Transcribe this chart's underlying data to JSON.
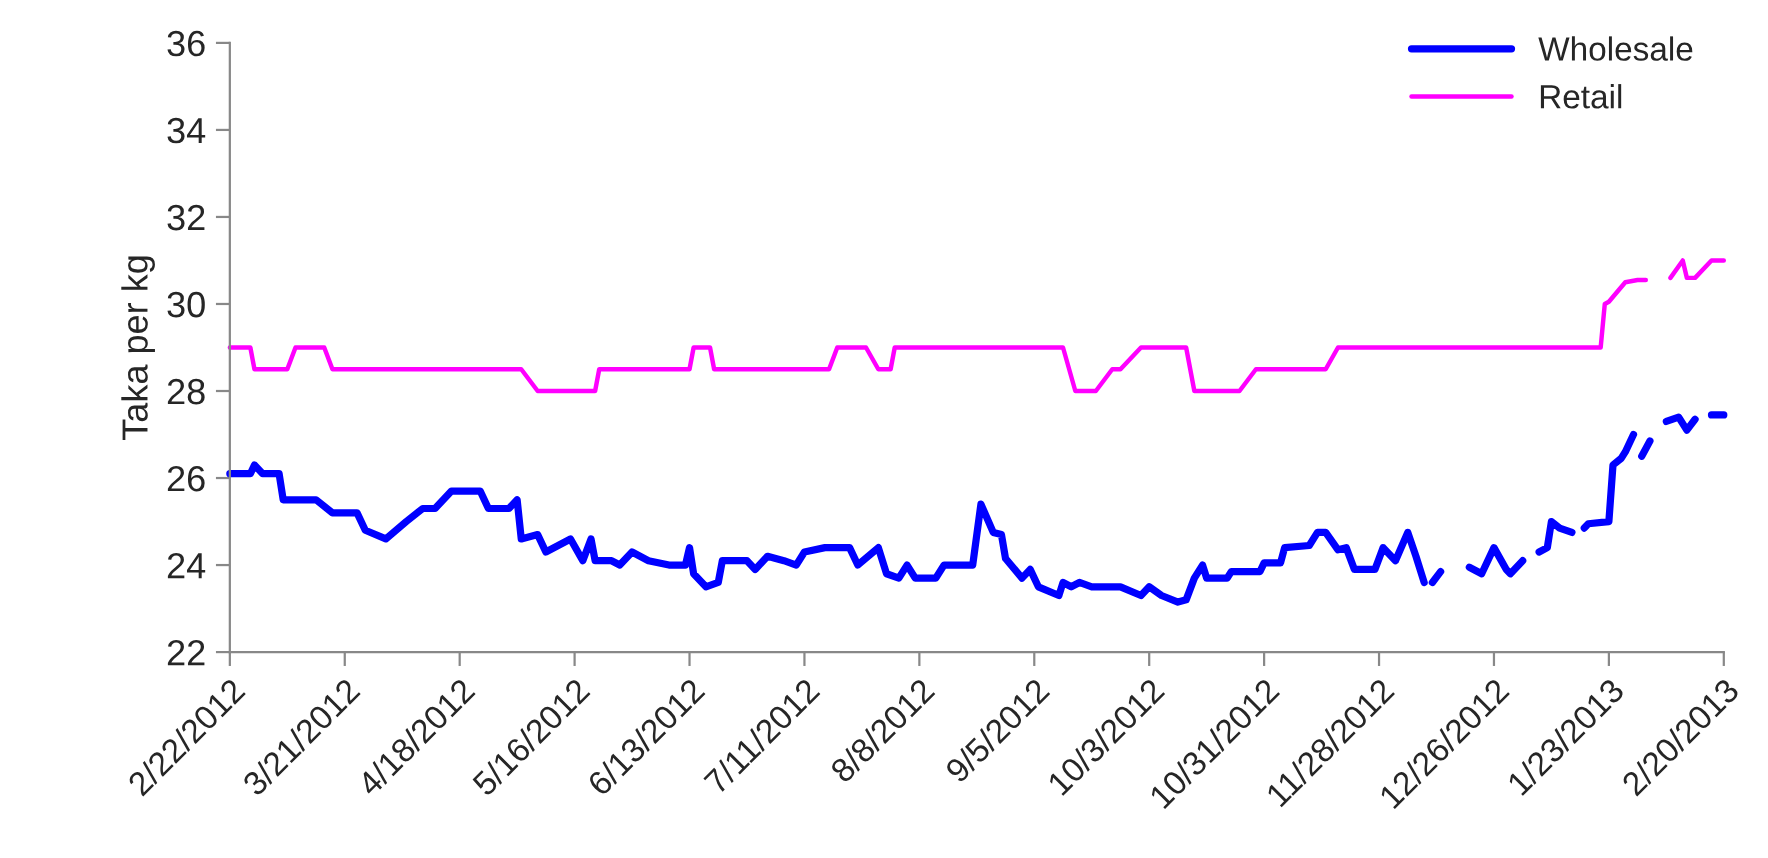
{
  "chart_data": {
    "type": "line",
    "ylabel": "Taka per kg",
    "ylim": [
      22,
      36
    ],
    "yticks": [
      22,
      24,
      26,
      28,
      30,
      32,
      34,
      36
    ],
    "xlim": [
      "2012-02-22",
      "2013-02-20"
    ],
    "xticks": [
      {
        "value": "2012-02-22",
        "label": "2/22/2012"
      },
      {
        "value": "2012-03-21",
        "label": "3/21/2012"
      },
      {
        "value": "2012-04-18",
        "label": "4/18/2012"
      },
      {
        "value": "2012-05-16",
        "label": "5/16/2012"
      },
      {
        "value": "2012-06-13",
        "label": "6/13/2012"
      },
      {
        "value": "2012-07-11",
        "label": "7/11/2012"
      },
      {
        "value": "2012-08-08",
        "label": "8/8/2012"
      },
      {
        "value": "2012-09-05",
        "label": "9/5/2012"
      },
      {
        "value": "2012-10-03",
        "label": "10/3/2012"
      },
      {
        "value": "2012-10-31",
        "label": "10/31/2012"
      },
      {
        "value": "2012-11-28",
        "label": "11/28/2012"
      },
      {
        "value": "2012-12-26",
        "label": "12/26/2012"
      },
      {
        "value": "2013-01-23",
        "label": "1/23/2013"
      },
      {
        "value": "2013-02-20",
        "label": "2/20/2013"
      }
    ],
    "grid": false,
    "legend": "top right",
    "marker": "none",
    "line_style": "solid",
    "series": [
      {
        "name": "Wholesale",
        "color": "#0000ff",
        "x": [
          "2012-02-22",
          "2012-02-27",
          "2012-02-28",
          "2012-03-01",
          "2012-03-05",
          "2012-03-06",
          "2012-03-14",
          "2012-03-18",
          "2012-03-24",
          "2012-03-26",
          "2012-03-31",
          "2012-04-05",
          "2012-04-09",
          "2012-04-12",
          "2012-04-16",
          "2012-04-23",
          "2012-04-25",
          "2012-04-30",
          "2012-05-02",
          "2012-05-03",
          "2012-05-07",
          "2012-05-09",
          "2012-05-15",
          "2012-05-18",
          "2012-05-20",
          "2012-05-21",
          "2012-05-25",
          "2012-05-27",
          "2012-05-30",
          "2012-06-03",
          "2012-06-08",
          "2012-06-12",
          "2012-06-13",
          "2012-06-14",
          "2012-06-17",
          "2012-06-20",
          "2012-06-21",
          "2012-06-27",
          "2012-06-29",
          "2012-07-02",
          "2012-07-06",
          "2012-07-09",
          "2012-07-11",
          "2012-07-16",
          "2012-07-22",
          "2012-07-24",
          "2012-07-29",
          "2012-07-31",
          "2012-08-03",
          "2012-08-05",
          "2012-08-07",
          "2012-08-12",
          "2012-08-14",
          "2012-08-21",
          "2012-08-23",
          "2012-08-26",
          "2012-08-28",
          "2012-08-29",
          "2012-09-02",
          "2012-09-04",
          "2012-09-06",
          "2012-09-11",
          "2012-09-12",
          "2012-09-14",
          "2012-09-16",
          "2012-09-19",
          "2012-09-26",
          "2012-10-01",
          "2012-10-03",
          "2012-10-06",
          "2012-10-10",
          "2012-10-12",
          "2012-10-14",
          "2012-10-16",
          "2012-10-17",
          "2012-10-22",
          "2012-10-23",
          "2012-10-30",
          "2012-10-31",
          "2012-11-04",
          "2012-11-05",
          "2012-11-11",
          "2012-11-13",
          "2012-11-15",
          "2012-11-18",
          "2012-11-20",
          "2012-11-22",
          "2012-11-27",
          "2012-11-29",
          "2012-12-02",
          "2012-12-05",
          "2012-12-07",
          "2012-12-09",
          "2012-12-10",
          "2012-12-11",
          "2012-12-13",
          "2012-12-17",
          "2012-12-20",
          "2012-12-23",
          "2012-12-26",
          "2012-12-29",
          "2012-12-30",
          "2013-01-02",
          "2013-01-04",
          "2013-01-06",
          "2013-01-08",
          "2013-01-09",
          "2013-01-11",
          "2013-01-14",
          "2013-01-15",
          "2013-01-17",
          "2013-01-18",
          "2013-01-23",
          "2013-01-24",
          "2013-01-26",
          "2013-01-27",
          "2013-01-29",
          "2013-01-30",
          "2013-01-31",
          "2013-02-02",
          "2013-02-04",
          "2013-02-06",
          "2013-02-09",
          "2013-02-11",
          "2013-02-13",
          "2013-02-15",
          "2013-02-17",
          "2013-02-20"
        ],
        "values": [
          26.1,
          26.1,
          26.3,
          26.1,
          26.1,
          25.5,
          25.5,
          25.2,
          25.2,
          24.8,
          24.6,
          25.0,
          25.3,
          25.3,
          25.7,
          25.7,
          25.3,
          25.3,
          25.5,
          24.6,
          24.7,
          24.3,
          24.6,
          24.1,
          24.6,
          24.1,
          24.1,
          24.0,
          24.3,
          24.1,
          24.0,
          24.0,
          24.4,
          23.8,
          23.5,
          23.6,
          24.1,
          24.1,
          23.9,
          24.2,
          24.1,
          24.0,
          24.3,
          24.4,
          24.4,
          24.0,
          24.4,
          23.8,
          23.7,
          24.0,
          23.7,
          23.7,
          24.0,
          24.0,
          25.4,
          24.75,
          24.7,
          24.15,
          23.7,
          23.9,
          23.5,
          23.3,
          23.6,
          23.5,
          23.6,
          23.5,
          23.5,
          23.3,
          23.5,
          23.3,
          23.15,
          23.2,
          23.7,
          24.0,
          23.7,
          23.7,
          23.85,
          23.85,
          24.05,
          24.05,
          24.4,
          24.45,
          24.75,
          24.75,
          24.35,
          24.4,
          23.9,
          23.9,
          24.4,
          24.1,
          24.75,
          24.2,
          23.6,
          null,
          23.6,
          23.85,
          null,
          23.95,
          23.8,
          24.4,
          23.9,
          23.8,
          24.1,
          null,
          24.3,
          24.4,
          25.0,
          24.85,
          24.75,
          null,
          24.85,
          24.95,
          25.0,
          26.3,
          26.45,
          26.6,
          27.0,
          null,
          26.5,
          26.85,
          null,
          27.3,
          27.4,
          27.1,
          27.35,
          null,
          27.45,
          27.45
        ]
      },
      {
        "name": "Retail",
        "color": "#ff00ff",
        "x": [
          "2012-02-22",
          "2012-02-27",
          "2012-02-28",
          "2012-03-07",
          "2012-03-09",
          "2012-03-16",
          "2012-03-18",
          "2012-05-03",
          "2012-05-07",
          "2012-05-21",
          "2012-05-22",
          "2012-06-13",
          "2012-06-14",
          "2012-06-18",
          "2012-06-19",
          "2012-07-17",
          "2012-07-19",
          "2012-07-26",
          "2012-07-29",
          "2012-08-01",
          "2012-08-02",
          "2012-09-12",
          "2012-09-15",
          "2012-09-20",
          "2012-09-24",
          "2012-09-26",
          "2012-10-01",
          "2012-10-12",
          "2012-10-14",
          "2012-10-25",
          "2012-10-29",
          "2012-11-15",
          "2012-11-18",
          "2013-01-21",
          "2013-01-22",
          "2013-01-23",
          "2013-01-27",
          "2013-01-30",
          "2013-02-01",
          "2013-02-03",
          "2013-02-07",
          "2013-02-10",
          "2013-02-11",
          "2013-02-13",
          "2013-02-17",
          "2013-02-20"
        ],
        "values": [
          29,
          29,
          28.5,
          28.5,
          29,
          29,
          28.5,
          28.5,
          28,
          28,
          28.5,
          28.5,
          29,
          29,
          28.5,
          28.5,
          29,
          29,
          28.5,
          28.5,
          29,
          29,
          28,
          28,
          28.5,
          28.5,
          29,
          29,
          28,
          28,
          28.5,
          28.5,
          29,
          29,
          30,
          30.05,
          30.5,
          30.55,
          30.55,
          null,
          30.6,
          31.0,
          30.6,
          30.6,
          31.0,
          31.0
        ]
      }
    ]
  }
}
